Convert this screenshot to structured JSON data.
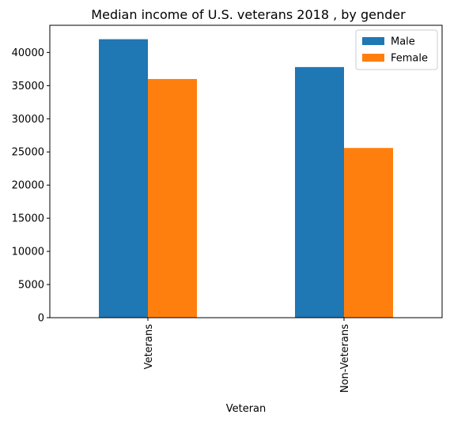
{
  "chart_data": {
    "type": "bar",
    "title": "Median income of U.S. veterans 2018 , by gender",
    "xlabel": "Veteran",
    "ylabel": "",
    "categories": [
      "Veterans",
      "Non-Veterans"
    ],
    "series": [
      {
        "name": "Male",
        "values": [
          42000,
          37800
        ],
        "color": "#1f77b4"
      },
      {
        "name": "Female",
        "values": [
          36000,
          25600
        ],
        "color": "#ff7f0e"
      }
    ],
    "ylim": [
      0,
      44100
    ],
    "yticks": [
      0,
      5000,
      10000,
      15000,
      20000,
      25000,
      30000,
      35000,
      40000
    ],
    "grid": false,
    "legend_position": "top-right"
  }
}
